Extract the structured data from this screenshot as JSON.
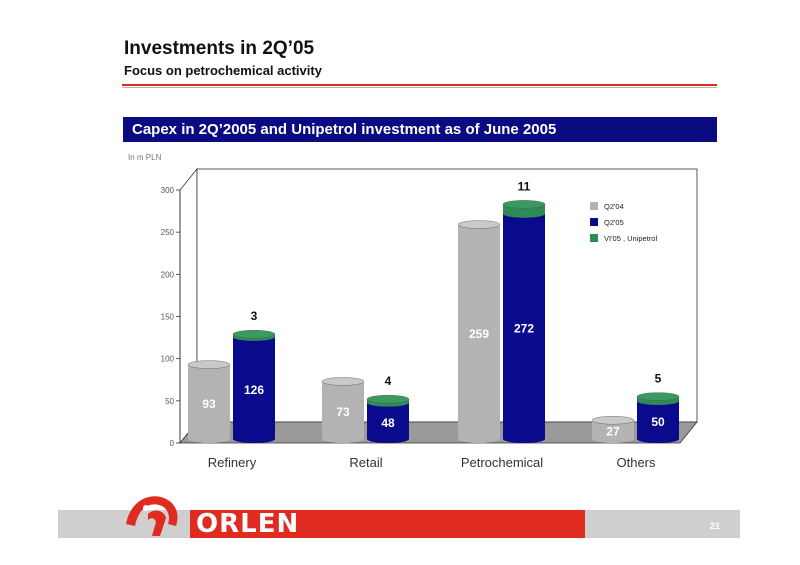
{
  "slide": {
    "title": "Investments in 2Q’05",
    "subtitle": "Focus on petrochemical activity",
    "banner": "Capex in 2Q’2005 and Unipetrol investment as of June 2005",
    "unit_note": "In m PLN",
    "page_number": "21",
    "logo_text": "ORLEN"
  },
  "colors": {
    "q204": "#b3b3b3",
    "q205": "#0a0a8c",
    "unipetrol": "#2e8b57",
    "banner": "#0a0a82",
    "brand_red": "#e02b20"
  },
  "chart_data": {
    "type": "bar",
    "categories": [
      "Refinery",
      "Retail",
      "Petrochemical",
      "Others"
    ],
    "ylim": [
      0,
      300
    ],
    "yticks": [
      0,
      50,
      100,
      150,
      200,
      250,
      300
    ],
    "grid": false,
    "legend_position": "top-right",
    "series": [
      {
        "name": "Q2'04",
        "values": [
          93,
          73,
          259,
          27
        ]
      },
      {
        "name": "Q2'05",
        "values": [
          126,
          48,
          272,
          50
        ]
      },
      {
        "name": "VI'05 , Unipetrol",
        "values": [
          3,
          4,
          11,
          5
        ]
      }
    ]
  }
}
